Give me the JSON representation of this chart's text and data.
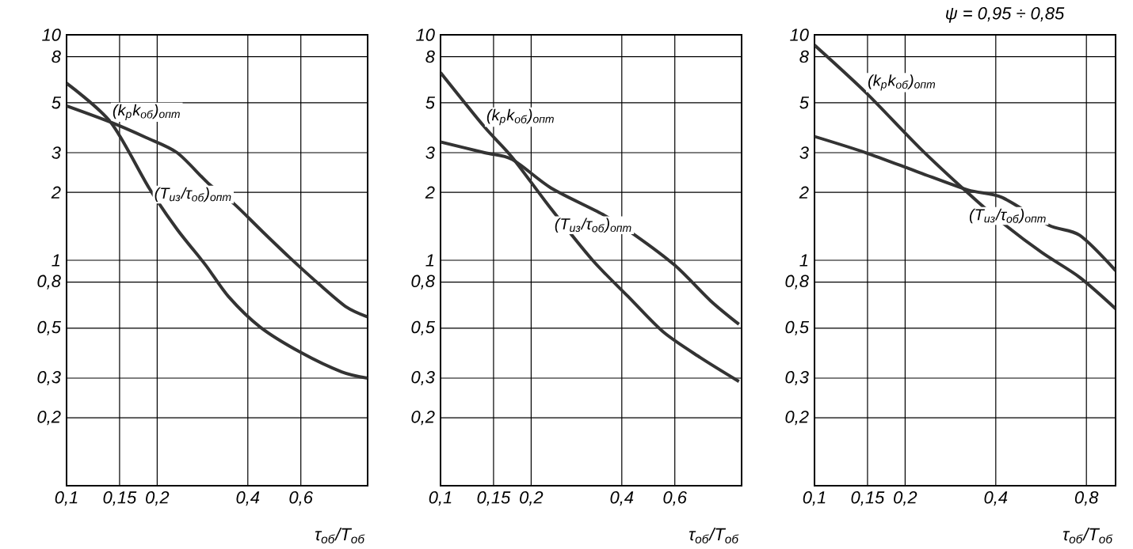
{
  "chart_data": [
    {
      "type": "line",
      "xlabel": "τ$_{об}$/T$_{об}$",
      "log": "xy",
      "grid": true,
      "line_style": "solid",
      "marker": "none",
      "xlim": [
        0.1,
        1
      ],
      "ylim": [
        0.1,
        10
      ],
      "xticks": [
        {
          "value": 0.1,
          "label": "0,1"
        },
        {
          "value": 0.15,
          "label": "0,15"
        },
        {
          "value": 0.2,
          "label": "0,2"
        },
        {
          "value": 0.4,
          "label": "0,4"
        },
        {
          "value": 0.6,
          "label": "0,6"
        }
      ],
      "yticks": [
        {
          "value": 0.2,
          "label": "0,2"
        },
        {
          "value": 0.3,
          "label": "0,3"
        },
        {
          "value": 0.5,
          "label": "0,5"
        },
        {
          "value": 0.8,
          "label": "0,8"
        },
        1,
        2,
        3,
        5,
        8,
        10
      ],
      "series": [
        {
          "name": "(k$_{р}$k$_{об}$)$_{опт}$",
          "color": "#333333",
          "x": [
            0.1,
            0.14,
            0.188,
            0.233,
            0.29,
            0.345,
            0.44,
            0.6,
            0.82,
            1.0
          ],
          "values": [
            6.1,
            4.1,
            2.09,
            1.37,
            0.95,
            0.69,
            0.505,
            0.39,
            0.32,
            0.3
          ]
        },
        {
          "name": "(T$_{из}$/τ$_{об}$)$_{опт}$",
          "color": "#333333",
          "x": [
            0.1,
            0.14,
            0.184,
            0.233,
            0.295,
            0.36,
            0.44,
            0.55,
            0.7,
            0.85,
            1.0
          ],
          "values": [
            4.84,
            4.1,
            3.5,
            3.0,
            2.2,
            1.78,
            1.37,
            1.03,
            0.77,
            0.62,
            0.56
          ]
        }
      ]
    },
    {
      "type": "line",
      "xlabel": "τ$_{об}$/T$_{об}$",
      "log": "xy",
      "grid": true,
      "line_style": "solid",
      "marker": "none",
      "xlim": [
        0.1,
        1
      ],
      "ylim": [
        0.1,
        10
      ],
      "xticks": [
        {
          "value": 0.1,
          "label": "0,1"
        },
        {
          "value": 0.15,
          "label": "0,15"
        },
        {
          "value": 0.2,
          "label": "0,2"
        },
        {
          "value": 0.4,
          "label": "0,4"
        },
        {
          "value": 0.6,
          "label": "0,6"
        }
      ],
      "yticks": [
        {
          "value": 0.2,
          "label": "0,2"
        },
        {
          "value": 0.3,
          "label": "0,3"
        },
        {
          "value": 0.5,
          "label": "0,5"
        },
        {
          "value": 0.8,
          "label": "0,8"
        },
        1,
        2,
        3,
        5,
        8,
        10
      ],
      "series": [
        {
          "name": "(k$_{р}$k$_{об}$)$_{опт}$",
          "color": "#333333",
          "x": [
            0.1,
            0.14,
            0.173,
            0.233,
            0.32,
            0.42,
            0.55,
            0.73,
            0.98
          ],
          "values": [
            6.8,
            3.9,
            2.86,
            1.69,
            1.0,
            0.69,
            0.48,
            0.37,
            0.29
          ]
        },
        {
          "name": "(T$_{из}$/τ$_{об}$)$_{опт}$",
          "color": "#333333",
          "x": [
            0.1,
            0.14,
            0.173,
            0.233,
            0.345,
            0.44,
            0.6,
            0.79,
            0.98
          ],
          "values": [
            3.35,
            3.0,
            2.8,
            2.09,
            1.6,
            1.3,
            0.95,
            0.66,
            0.52
          ]
        }
      ]
    },
    {
      "type": "line",
      "xlabel": "τ$_{об}$/T$_{об}$",
      "log": "xy",
      "grid": true,
      "line_style": "solid",
      "marker": "none",
      "annotations": [
        "ψ = 0,95 ÷ 0,85"
      ],
      "xlim": [
        0.1,
        1
      ],
      "ylim": [
        0.1,
        10
      ],
      "xticks": [
        {
          "value": 0.1,
          "label": "0,1"
        },
        {
          "value": 0.15,
          "label": "0,15"
        },
        {
          "value": 0.2,
          "label": "0,2"
        },
        {
          "value": 0.4,
          "label": "0,4"
        },
        {
          "value": 0.8,
          "label": "0,8"
        }
      ],
      "yticks": [
        {
          "value": 0.2,
          "label": "0,2"
        },
        {
          "value": 0.3,
          "label": "0,3"
        },
        {
          "value": 0.5,
          "label": "0,5"
        },
        {
          "value": 0.8,
          "label": "0,8"
        },
        1,
        2,
        3,
        5,
        8,
        10
      ],
      "series": [
        {
          "name": "(k$_{р}$k$_{об}$)$_{опт}$",
          "color": "#333333",
          "x": [
            0.1,
            0.148,
            0.223,
            0.323,
            0.42,
            0.57,
            0.76,
            1.0
          ],
          "values": [
            9.0,
            5.55,
            3.16,
            1.99,
            1.47,
            1.08,
            0.84,
            0.61
          ]
        },
        {
          "name": "(T$_{из}$/τ$_{об}$)$_{опт}$",
          "color": "#333333",
          "x": [
            0.1,
            0.148,
            0.223,
            0.323,
            0.42,
            0.6,
            0.76,
            1.0
          ],
          "values": [
            3.54,
            3.0,
            2.45,
            2.05,
            1.9,
            1.43,
            1.29,
            0.9
          ]
        }
      ]
    }
  ]
}
